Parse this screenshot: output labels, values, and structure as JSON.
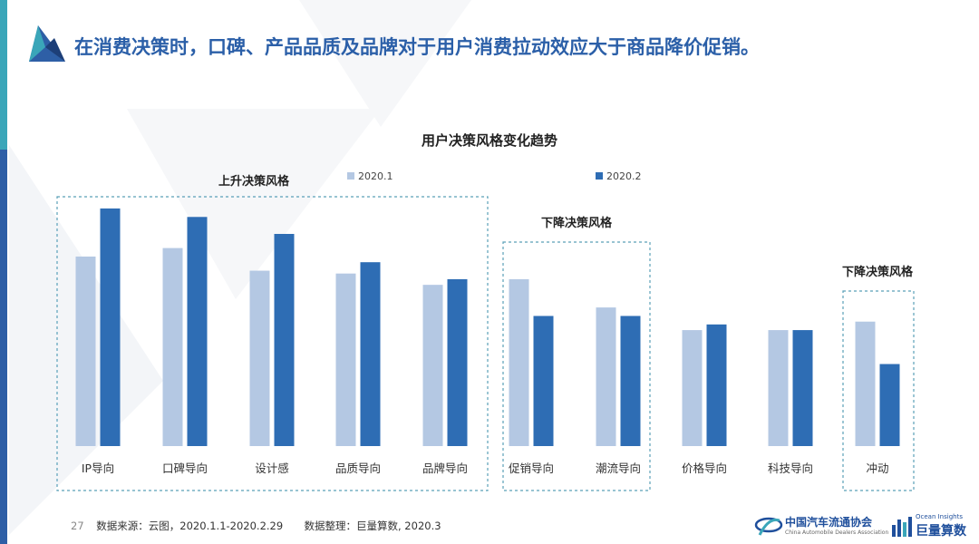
{
  "page": {
    "headline": "在消费决策时，口碑、产品品质及品牌对于用户消费拉动效应大于商品降价促销。"
  },
  "footer": {
    "page_number": "27",
    "source": "数据来源：云图，2020.1.1-2020.2.29",
    "compiled": "数据整理：巨量算数, 2020.3"
  },
  "logos": {
    "cada_cn": "中国汽车流通协会",
    "cada_en": "China Automobile Dealers Association",
    "ocean_en": "Ocean Insights",
    "ocean_cn": "巨量算数"
  },
  "colors": {
    "series_2020_1": "#b4c8e3",
    "series_2020_2": "#2e6db4",
    "headline": "#2b5fa8",
    "box_border": "#5aa0b8"
  },
  "chart_data": {
    "type": "bar",
    "title": "用户决策风格变化趋势",
    "value_note": "relative bar heights (0–100 scale); the chart shows no axis or data labels",
    "categories": [
      "IP导向",
      "口碑导向",
      "设计感",
      "品质导向",
      "品牌导向",
      "促销导向",
      "潮流导向",
      "价格导向",
      "科技导向",
      "冲动"
    ],
    "series": [
      {
        "name": "2020.1",
        "values": [
          67,
          70,
          62,
          61,
          57,
          59,
          49,
          41,
          41,
          44
        ]
      },
      {
        "name": "2020.2",
        "values": [
          84,
          81,
          75,
          65,
          59,
          46,
          46,
          43,
          41,
          29
        ]
      }
    ],
    "groups": [
      {
        "label": "上升决策风格",
        "categories": [
          "IP导向",
          "口碑导向",
          "设计感",
          "品质导向",
          "品牌导向"
        ]
      },
      {
        "label": "下降决策风格",
        "categories": [
          "促销导向",
          "潮流导向"
        ]
      },
      {
        "label": "下降决策风格",
        "categories": [
          "冲动"
        ]
      }
    ],
    "legend_position": "top",
    "grid": false,
    "ylim": [
      0,
      100
    ]
  }
}
